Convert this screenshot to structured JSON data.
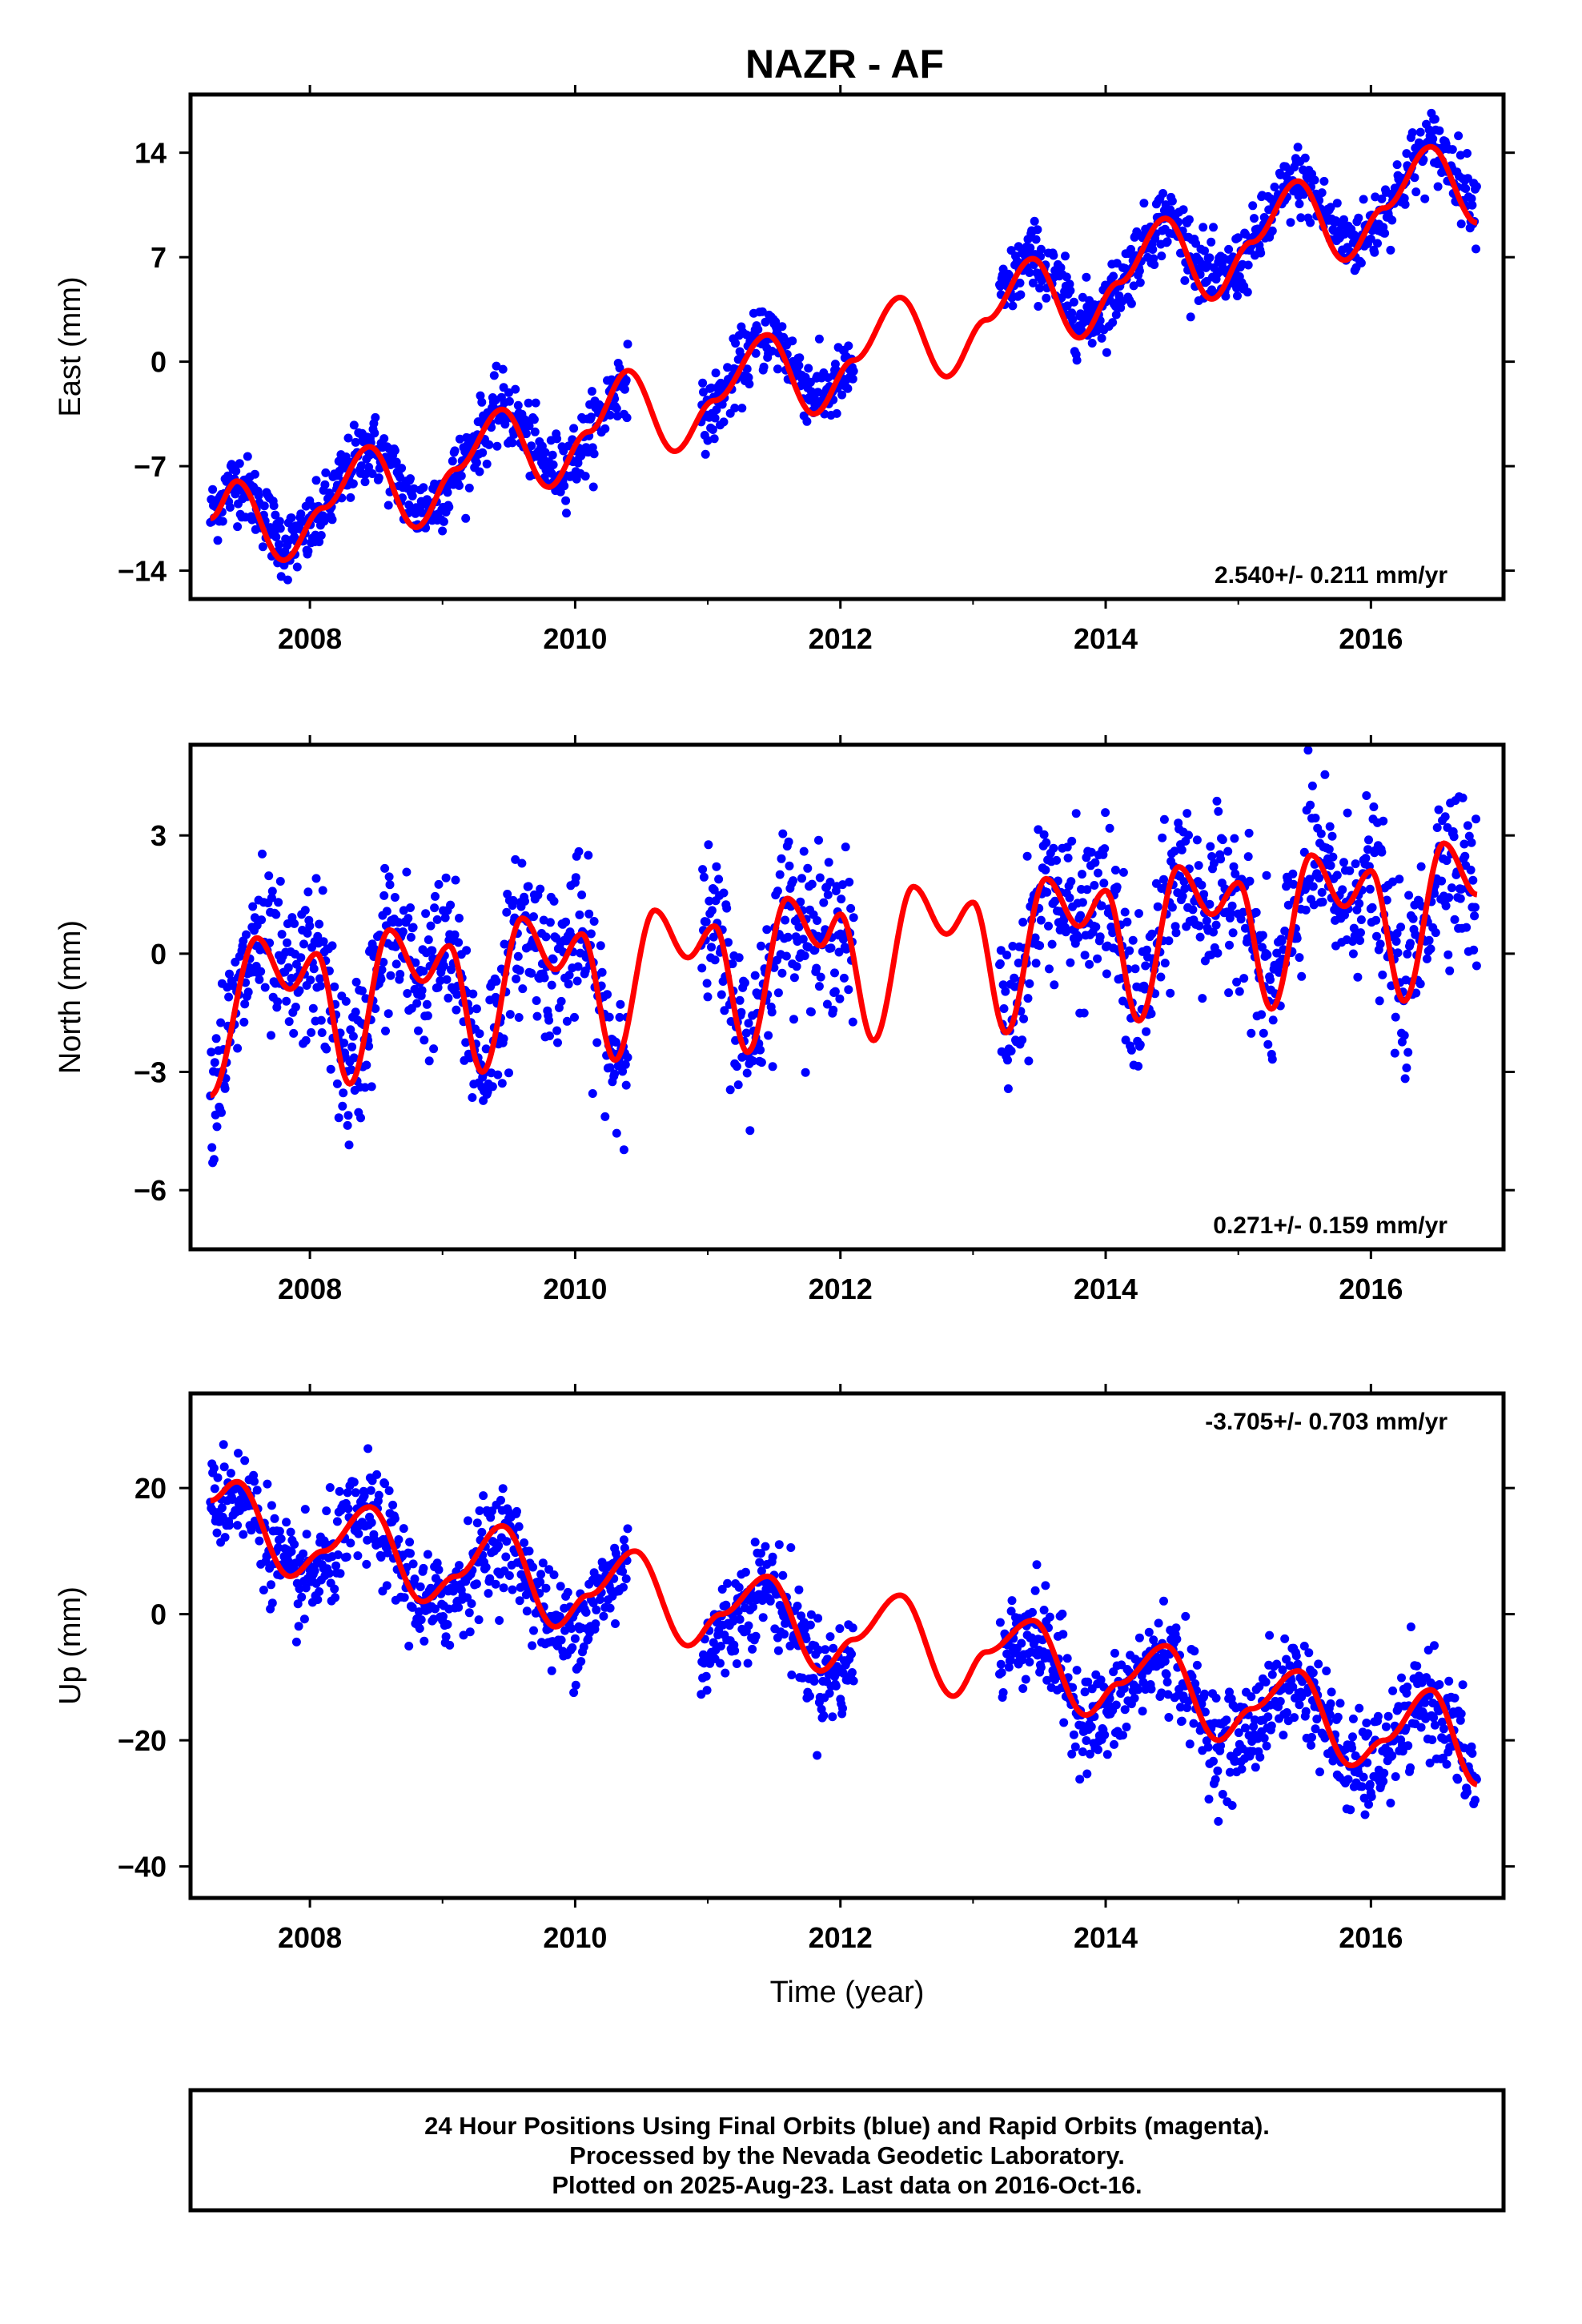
{
  "title": "NAZR - AF",
  "colors": {
    "data": "#0000ff",
    "fit": "#ff0000",
    "frame": "#000000"
  },
  "chart_data": [
    {
      "type": "scatter",
      "ylabel": "East (mm)",
      "xlabel": "",
      "rate_text": "2.540+/- 0.211 mm/yr",
      "rate_position": "bottom-right",
      "xlim": [
        2007.1,
        2017.0
      ],
      "ylim": [
        -15.9,
        17.9
      ],
      "xticks": [
        2008,
        2010,
        2012,
        2014,
        2016
      ],
      "xtick_labels": [
        "2008",
        "2010",
        "2012",
        "2014",
        "2016"
      ],
      "yticks": [
        -14,
        -7,
        0,
        7,
        14
      ],
      "ytick_labels": [
        "−14",
        "−7",
        "0",
        "7",
        "14"
      ],
      "series": [
        {
          "kind": "points",
          "color": "#0000ff",
          "segments": [
            [
              2007.25,
              2010.4
            ],
            [
              2010.95,
              2012.1
            ],
            [
              2013.2,
              2016.8
            ]
          ],
          "trend": {
            "t0": 2007.3,
            "y0": -11.0,
            "rate": 2.54
          },
          "seasonal": {
            "amp": 2.6,
            "peak": 2007.45
          },
          "scatter_sd": 1.15
        },
        {
          "kind": "line",
          "color": "#ff0000",
          "x": [
            2007.25,
            2007.45,
            2007.8,
            2008.1,
            2008.45,
            2008.8,
            2009.1,
            2009.45,
            2009.8,
            2010.1,
            2010.4,
            2010.75,
            2011.05,
            2011.45,
            2011.8,
            2012.1,
            2012.45,
            2012.8,
            2013.1,
            2013.45,
            2013.8,
            2014.1,
            2014.45,
            2014.8,
            2015.1,
            2015.45,
            2015.8,
            2016.1,
            2016.45,
            2016.8
          ],
          "y": [
            -10.5,
            -8.0,
            -13.3,
            -9.8,
            -5.7,
            -11.1,
            -7.2,
            -3.2,
            -8.4,
            -4.7,
            -0.6,
            -6.0,
            -2.6,
            1.8,
            -3.5,
            0.1,
            4.3,
            -1.0,
            2.8,
            6.9,
            1.6,
            5.3,
            9.6,
            4.2,
            8.0,
            12.1,
            6.8,
            10.3,
            14.4,
            9.3
          ]
        }
      ]
    },
    {
      "type": "scatter",
      "ylabel": "North (mm)",
      "xlabel": "",
      "rate_text": "0.271+/- 0.159 mm/yr",
      "rate_position": "bottom-right",
      "xlim": [
        2007.1,
        2017.0
      ],
      "ylim": [
        -7.5,
        5.3
      ],
      "xticks": [
        2008,
        2010,
        2012,
        2014,
        2016
      ],
      "xtick_labels": [
        "2008",
        "2010",
        "2012",
        "2014",
        "2016"
      ],
      "yticks": [
        -6,
        -3,
        0,
        3
      ],
      "ytick_labels": [
        "−6",
        "−3",
        "0",
        "3"
      ],
      "series": [
        {
          "kind": "points",
          "color": "#0000ff",
          "segments": [
            [
              2007.25,
              2010.4
            ],
            [
              2010.95,
              2012.1
            ],
            [
              2013.2,
              2016.8
            ]
          ],
          "follow_fit": true,
          "scatter_sd": 1.0
        },
        {
          "kind": "line",
          "color": "#ff0000",
          "x": [
            2007.25,
            2007.6,
            2007.85,
            2008.05,
            2008.3,
            2008.6,
            2008.85,
            2009.05,
            2009.3,
            2009.6,
            2009.85,
            2010.05,
            2010.3,
            2010.6,
            2010.85,
            2011.05,
            2011.3,
            2011.6,
            2011.85,
            2012.0,
            2012.25,
            2012.55,
            2012.8,
            2013.0,
            2013.25,
            2013.55,
            2013.8,
            2014.0,
            2014.25,
            2014.55,
            2014.8,
            2015.0,
            2015.25,
            2015.55,
            2015.8,
            2016.0,
            2016.25,
            2016.55,
            2016.8
          ],
          "y": [
            -3.6,
            0.4,
            -0.9,
            0.0,
            -3.3,
            0.6,
            -0.7,
            0.2,
            -3.0,
            0.9,
            -0.4,
            0.5,
            -2.7,
            1.1,
            -0.1,
            0.7,
            -2.5,
            1.4,
            0.2,
            1.0,
            -2.2,
            1.7,
            0.5,
            1.3,
            -2.0,
            1.9,
            0.7,
            1.6,
            -1.7,
            2.2,
            1.0,
            1.8,
            -1.4,
            2.5,
            1.2,
            2.1,
            -1.2,
            2.8,
            1.5
          ]
        }
      ]
    },
    {
      "type": "scatter",
      "ylabel": "Up (mm)",
      "xlabel": "Time (year)",
      "rate_text": "-3.705+/- 0.703 mm/yr",
      "rate_position": "top-right",
      "xlim": [
        2007.1,
        2017.0
      ],
      "ylim": [
        -45,
        35
      ],
      "xticks": [
        2008,
        2010,
        2012,
        2014,
        2016
      ],
      "xtick_labels": [
        "2008",
        "2010",
        "2012",
        "2014",
        "2016"
      ],
      "yticks": [
        -40,
        -20,
        0,
        20
      ],
      "ytick_labels": [
        "−40",
        "−20",
        "0",
        "20"
      ],
      "series": [
        {
          "kind": "points",
          "color": "#0000ff",
          "segments": [
            [
              2007.25,
              2010.4
            ],
            [
              2010.95,
              2012.1
            ],
            [
              2013.2,
              2016.8
            ]
          ],
          "trend": {
            "t0": 2007.3,
            "y0": 12.0,
            "rate": -3.705
          },
          "seasonal": {
            "amp": 7.0,
            "peak": 2007.45
          },
          "scatter_sd": 4.0
        },
        {
          "kind": "line",
          "color": "#ff0000",
          "x": [
            2007.25,
            2007.45,
            2007.85,
            2008.1,
            2008.45,
            2008.85,
            2009.1,
            2009.45,
            2009.85,
            2010.1,
            2010.45,
            2010.85,
            2011.1,
            2011.45,
            2011.85,
            2012.1,
            2012.45,
            2012.85,
            2013.1,
            2013.45,
            2013.85,
            2014.1,
            2014.45,
            2014.85,
            2015.1,
            2015.45,
            2015.85,
            2016.1,
            2016.45,
            2016.8
          ],
          "y": [
            18,
            21,
            6,
            10,
            17,
            2,
            6,
            14,
            -2,
            3,
            10,
            -5,
            0,
            6,
            -9,
            -4,
            3,
            -13,
            -6,
            -1,
            -16,
            -11,
            -5,
            -20,
            -15,
            -9,
            -24,
            -20,
            -12,
            -27
          ]
        }
      ]
    }
  ],
  "footer": {
    "line1": "24 Hour Positions Using Final Orbits (blue) and Rapid Orbits (magenta).",
    "line2": "Processed by the Nevada Geodetic Laboratory.",
    "line3": "Plotted on 2025-Aug-23. Last data on 2016-Oct-16."
  }
}
